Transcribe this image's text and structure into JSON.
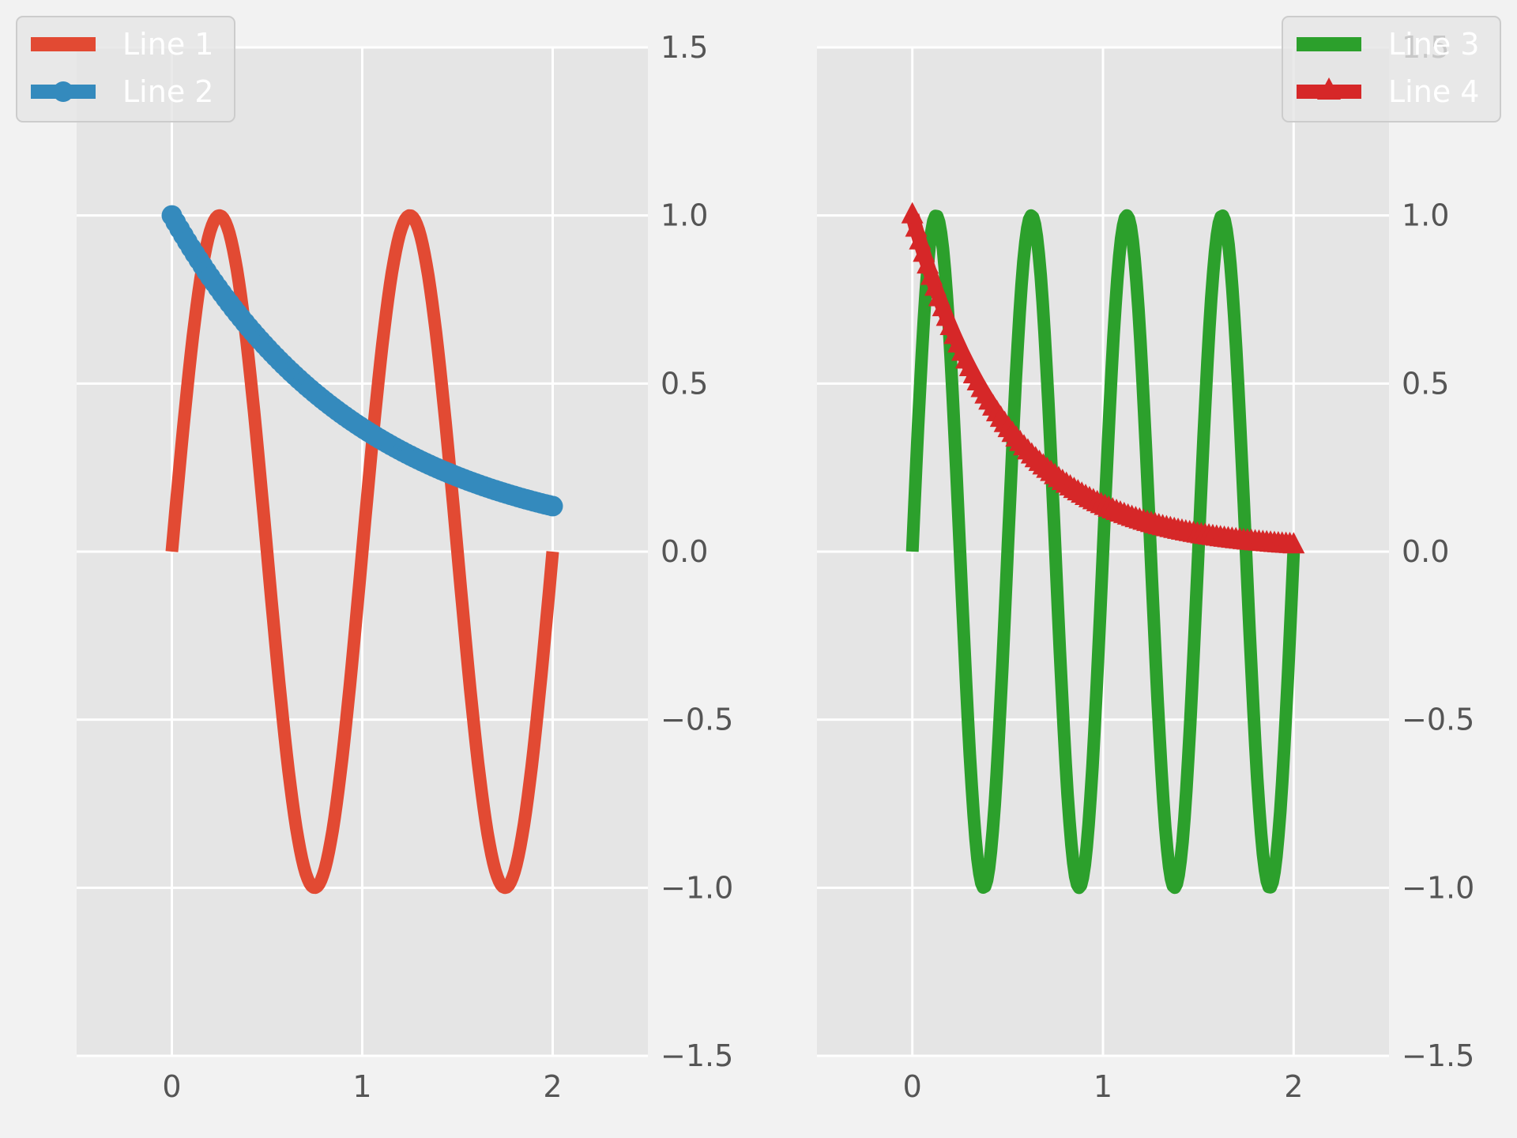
{
  "chart_data": [
    {
      "type": "line",
      "xlim": [
        -0.5,
        2.5
      ],
      "ylim": [
        -1.5,
        1.5
      ],
      "x_ticks": [
        "0",
        "1",
        "2"
      ],
      "x_tick_values": [
        0,
        1,
        2
      ],
      "y_ticks": [
        "−1.5",
        "−1.0",
        "−0.5",
        "0.0",
        "0.5",
        "1.0",
        "1.5"
      ],
      "y_tick_values": [
        -1.5,
        -1.0,
        -0.5,
        0.0,
        0.5,
        1.0,
        1.5
      ],
      "y_axis_side": "right",
      "grid": true,
      "legend_position": "top-left",
      "x_range": [
        0,
        2
      ],
      "series": [
        {
          "name": "Line 1",
          "function": "sin(2πx)",
          "color": "#e24a33",
          "marker": "none"
        },
        {
          "name": "Line 2",
          "function": "exp(-x)",
          "color": "#348abd",
          "marker": "circle"
        }
      ]
    },
    {
      "type": "line",
      "xlim": [
        -0.5,
        2.5
      ],
      "ylim": [
        -1.5,
        1.5
      ],
      "x_ticks": [
        "0",
        "1",
        "2"
      ],
      "x_tick_values": [
        0,
        1,
        2
      ],
      "y_ticks": [
        "−1.5",
        "−1.0",
        "−0.5",
        "0.0",
        "0.5",
        "1.0",
        "1.5"
      ],
      "y_tick_values": [
        -1.5,
        -1.0,
        -0.5,
        0.0,
        0.5,
        1.0,
        1.5
      ],
      "y_axis_side": "right",
      "grid": true,
      "legend_position": "top-right",
      "x_range": [
        0,
        2
      ],
      "series": [
        {
          "name": "Line 3",
          "function": "sin(4πx)",
          "color": "#2ca02c",
          "marker": "none"
        },
        {
          "name": "Line 4",
          "function": "exp(-2x)",
          "color": "#d62728",
          "marker": "triangle"
        }
      ]
    }
  ],
  "colors": {
    "figure_bg": "#f2f2f2",
    "axes_bg": "#e5e5e5",
    "grid": "#ffffff",
    "tick_text": "#555555"
  }
}
